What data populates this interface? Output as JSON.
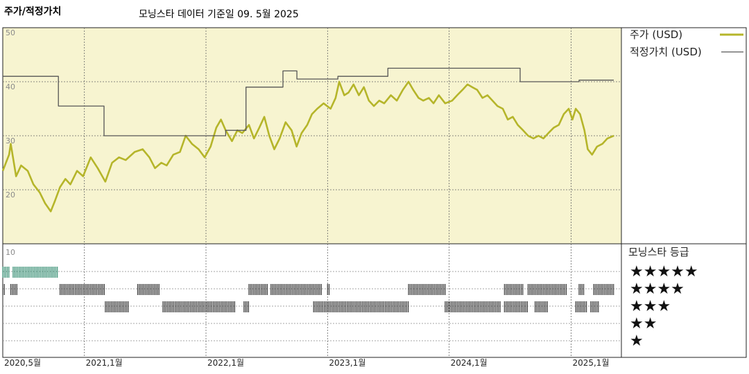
{
  "header": {
    "title": "주가/적정가치",
    "subtitle": "모닝스타 데이터 기준일 09. 5월 2025"
  },
  "chart_data": {
    "type": "line",
    "x_range": [
      "2020-05-01",
      "2025-06-01"
    ],
    "ylim": [
      10,
      50
    ],
    "y_ticks": [
      20,
      30,
      40,
      50
    ],
    "grid": true,
    "x_ticks": [
      {
        "date": "2020-05-01",
        "label": "2020,5월"
      },
      {
        "date": "2021-01-01",
        "label": "2021,1월"
      },
      {
        "date": "2022-01-01",
        "label": "2022,1월"
      },
      {
        "date": "2023-01-01",
        "label": "2023,1월"
      },
      {
        "date": "2024-01-01",
        "label": "2024,1월"
      },
      {
        "date": "2025-01-01",
        "label": "2025,1월"
      }
    ],
    "legend_position": "right",
    "series": [
      {
        "name": "주가 (USD)",
        "color": "#b5b52a",
        "points": [
          [
            "2020-05-01",
            23.5
          ],
          [
            "2020-05-20",
            26.5
          ],
          [
            "2020-05-25",
            28.5
          ],
          [
            "2020-06-10",
            22.5
          ],
          [
            "2020-06-25",
            24.5
          ],
          [
            "2020-07-15",
            23.5
          ],
          [
            "2020-08-01",
            21.0
          ],
          [
            "2020-08-20",
            19.5
          ],
          [
            "2020-09-05",
            17.5
          ],
          [
            "2020-09-22",
            16.0
          ],
          [
            "2020-10-05",
            18.0
          ],
          [
            "2020-10-20",
            20.5
          ],
          [
            "2020-11-05",
            22.0
          ],
          [
            "2020-11-20",
            21.0
          ],
          [
            "2020-12-10",
            23.5
          ],
          [
            "2020-12-28",
            22.5
          ],
          [
            "2021-01-20",
            26.0
          ],
          [
            "2021-02-10",
            24.0
          ],
          [
            "2021-03-05",
            21.5
          ],
          [
            "2021-03-25",
            25.0
          ],
          [
            "2021-04-15",
            26.0
          ],
          [
            "2021-05-05",
            25.5
          ],
          [
            "2021-06-01",
            27.0
          ],
          [
            "2021-06-25",
            27.5
          ],
          [
            "2021-07-15",
            26.0
          ],
          [
            "2021-08-01",
            24.0
          ],
          [
            "2021-08-20",
            25.0
          ],
          [
            "2021-09-05",
            24.5
          ],
          [
            "2021-09-25",
            26.5
          ],
          [
            "2021-10-15",
            27.0
          ],
          [
            "2021-11-01",
            30.0
          ],
          [
            "2021-11-20",
            28.5
          ],
          [
            "2021-12-10",
            27.5
          ],
          [
            "2021-12-28",
            26.0
          ],
          [
            "2022-01-15",
            28.0
          ],
          [
            "2022-02-01",
            31.5
          ],
          [
            "2022-02-15",
            33.0
          ],
          [
            "2022-03-01",
            31.0
          ],
          [
            "2022-03-20",
            29.0
          ],
          [
            "2022-04-05",
            31.0
          ],
          [
            "2022-04-20",
            30.5
          ],
          [
            "2022-05-10",
            32.0
          ],
          [
            "2022-05-25",
            29.5
          ],
          [
            "2022-06-10",
            31.5
          ],
          [
            "2022-06-25",
            33.5
          ],
          [
            "2022-07-10",
            30.0
          ],
          [
            "2022-07-25",
            27.5
          ],
          [
            "2022-08-10",
            29.5
          ],
          [
            "2022-08-28",
            32.5
          ],
          [
            "2022-09-15",
            31.0
          ],
          [
            "2022-09-30",
            28.0
          ],
          [
            "2022-10-15",
            30.5
          ],
          [
            "2022-11-01",
            32.0
          ],
          [
            "2022-11-15",
            34.0
          ],
          [
            "2022-12-01",
            35.0
          ],
          [
            "2022-12-20",
            36.0
          ],
          [
            "2023-01-10",
            35.0
          ],
          [
            "2023-01-25",
            37.0
          ],
          [
            "2023-02-05",
            40.0
          ],
          [
            "2023-02-20",
            37.5
          ],
          [
            "2023-03-05",
            38.0
          ],
          [
            "2023-03-20",
            39.5
          ],
          [
            "2023-04-05",
            37.5
          ],
          [
            "2023-04-20",
            39.0
          ],
          [
            "2023-05-05",
            36.5
          ],
          [
            "2023-05-20",
            35.5
          ],
          [
            "2023-06-05",
            36.5
          ],
          [
            "2023-06-20",
            36.0
          ],
          [
            "2023-07-10",
            37.5
          ],
          [
            "2023-07-28",
            36.5
          ],
          [
            "2023-08-15",
            38.5
          ],
          [
            "2023-09-01",
            40.0
          ],
          [
            "2023-09-15",
            38.5
          ],
          [
            "2023-10-01",
            37.0
          ],
          [
            "2023-10-15",
            36.5
          ],
          [
            "2023-11-01",
            37.0
          ],
          [
            "2023-11-15",
            36.0
          ],
          [
            "2023-12-01",
            37.5
          ],
          [
            "2023-12-20",
            36.0
          ],
          [
            "2024-01-10",
            36.5
          ],
          [
            "2024-01-25",
            37.5
          ],
          [
            "2024-02-10",
            38.5
          ],
          [
            "2024-02-25",
            39.5
          ],
          [
            "2024-03-10",
            39.0
          ],
          [
            "2024-03-25",
            38.5
          ],
          [
            "2024-04-10",
            37.0
          ],
          [
            "2024-04-25",
            37.5
          ],
          [
            "2024-05-10",
            36.5
          ],
          [
            "2024-05-25",
            35.5
          ],
          [
            "2024-06-10",
            35.0
          ],
          [
            "2024-06-25",
            33.0
          ],
          [
            "2024-07-10",
            33.5
          ],
          [
            "2024-07-25",
            32.0
          ],
          [
            "2024-08-10",
            31.0
          ],
          [
            "2024-08-25",
            30.0
          ],
          [
            "2024-09-10",
            29.5
          ],
          [
            "2024-09-25",
            30.0
          ],
          [
            "2024-10-10",
            29.5
          ],
          [
            "2024-10-25",
            30.5
          ],
          [
            "2024-11-10",
            31.5
          ],
          [
            "2024-11-25",
            32.0
          ],
          [
            "2024-12-10",
            34.0
          ],
          [
            "2024-12-25",
            35.0
          ],
          [
            "2025-01-05",
            33.0
          ],
          [
            "2025-01-15",
            35.0
          ],
          [
            "2025-01-28",
            34.0
          ],
          [
            "2025-02-10",
            31.0
          ],
          [
            "2025-02-20",
            27.5
          ],
          [
            "2025-03-05",
            26.5
          ],
          [
            "2025-03-20",
            28.0
          ],
          [
            "2025-04-05",
            28.5
          ],
          [
            "2025-04-20",
            29.5
          ],
          [
            "2025-05-09",
            30.0
          ]
        ]
      },
      {
        "name": "적정가치 (USD)",
        "color": "#555555",
        "step": true,
        "points": [
          [
            "2020-05-01",
            41.0
          ],
          [
            "2020-10-15",
            35.5
          ],
          [
            "2021-03-01",
            30.0
          ],
          [
            "2022-01-15",
            30.0
          ],
          [
            "2022-03-01",
            31.0
          ],
          [
            "2022-05-01",
            39.0
          ],
          [
            "2022-08-20",
            42.0
          ],
          [
            "2022-10-01",
            40.5
          ],
          [
            "2023-02-01",
            41.0
          ],
          [
            "2023-07-01",
            42.5
          ],
          [
            "2024-08-01",
            40.0
          ],
          [
            "2025-01-15",
            40.0
          ],
          [
            "2025-01-25",
            40.3
          ],
          [
            "2025-05-09",
            40.3
          ]
        ]
      }
    ],
    "rating": {
      "title": "모닝스타 등급",
      "levels": [
        "★★★★★",
        "★★★★",
        "★★★",
        "★★",
        "★"
      ],
      "panel_range": 10,
      "periods": [
        {
          "stars": 5,
          "start": "2020-05-01",
          "end": "2020-05-20"
        },
        {
          "stars": 5,
          "start": "2020-06-01",
          "end": "2020-10-15"
        },
        {
          "stars": 4,
          "start": "2020-05-01",
          "end": "2020-05-10"
        },
        {
          "stars": 4,
          "start": "2020-05-25",
          "end": "2020-06-15"
        },
        {
          "stars": 4,
          "start": "2020-10-20",
          "end": "2021-03-05"
        },
        {
          "stars": 4,
          "start": "2021-06-10",
          "end": "2021-08-15"
        },
        {
          "stars": 4,
          "start": "2022-05-10",
          "end": "2022-07-05"
        },
        {
          "stars": 4,
          "start": "2022-07-15",
          "end": "2022-12-15"
        },
        {
          "stars": 4,
          "start": "2023-01-01",
          "end": "2023-01-08"
        },
        {
          "stars": 4,
          "start": "2023-09-01",
          "end": "2023-12-20"
        },
        {
          "stars": 4,
          "start": "2024-06-15",
          "end": "2024-08-10"
        },
        {
          "stars": 4,
          "start": "2024-08-25",
          "end": "2024-12-20"
        },
        {
          "stars": 4,
          "start": "2025-01-25",
          "end": "2025-02-10"
        },
        {
          "stars": 4,
          "start": "2025-03-10",
          "end": "2025-05-09"
        },
        {
          "stars": 3,
          "start": "2021-03-05",
          "end": "2021-05-15"
        },
        {
          "stars": 3,
          "start": "2021-08-25",
          "end": "2022-04-01"
        },
        {
          "stars": 3,
          "start": "2022-04-25",
          "end": "2022-05-10"
        },
        {
          "stars": 3,
          "start": "2022-11-20",
          "end": "2023-09-01"
        },
        {
          "stars": 3,
          "start": "2023-12-20",
          "end": "2024-06-05"
        },
        {
          "stars": 3,
          "start": "2024-06-15",
          "end": "2024-08-25"
        },
        {
          "stars": 3,
          "start": "2024-09-15",
          "end": "2024-10-25"
        },
        {
          "stars": 3,
          "start": "2025-01-15",
          "end": "2025-02-20"
        },
        {
          "stars": 3,
          "start": "2025-03-01",
          "end": "2025-03-25"
        }
      ]
    }
  }
}
